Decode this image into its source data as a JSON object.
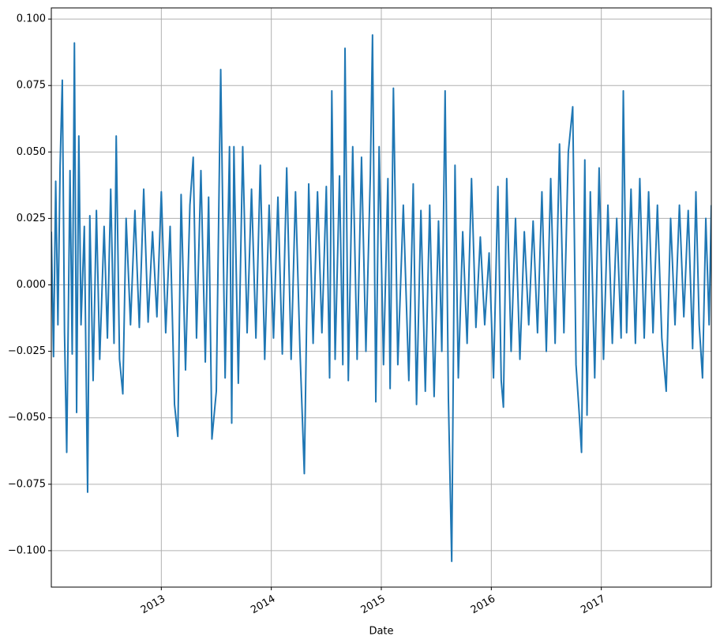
{
  "chart_data": {
    "type": "line",
    "x_label": "Date",
    "x": [
      2012.0,
      2012.02,
      2012.04,
      2012.06,
      2012.08,
      2012.1,
      2012.12,
      2012.14,
      2012.17,
      2012.19,
      2012.21,
      2012.23,
      2012.25,
      2012.27,
      2012.3,
      2012.33,
      2012.35,
      2012.38,
      2012.41,
      2012.44,
      2012.48,
      2012.51,
      2012.54,
      2012.57,
      2012.59,
      2012.62,
      2012.65,
      2012.68,
      2012.72,
      2012.76,
      2012.8,
      2012.84,
      2012.88,
      2012.92,
      2012.96,
      2013.0,
      2013.04,
      2013.08,
      2013.12,
      2013.15,
      2013.18,
      2013.22,
      2013.26,
      2013.29,
      2013.32,
      2013.36,
      2013.4,
      2013.43,
      2013.46,
      2013.5,
      2013.54,
      2013.58,
      2013.62,
      2013.64,
      2013.66,
      2013.7,
      2013.74,
      2013.78,
      2013.82,
      2013.86,
      2013.9,
      2013.94,
      2013.98,
      2014.02,
      2014.06,
      2014.1,
      2014.14,
      2014.18,
      2014.22,
      2014.26,
      2014.3,
      2014.34,
      2014.38,
      2014.42,
      2014.46,
      2014.5,
      2014.53,
      2014.55,
      2014.58,
      2014.62,
      2014.65,
      2014.67,
      2014.7,
      2014.74,
      2014.78,
      2014.82,
      2014.86,
      2014.9,
      2014.92,
      2014.95,
      2014.98,
      2015.02,
      2015.06,
      2015.08,
      2015.11,
      2015.15,
      2015.2,
      2015.25,
      2015.29,
      2015.32,
      2015.36,
      2015.4,
      2015.44,
      2015.48,
      2015.52,
      2015.55,
      2015.58,
      2015.61,
      2015.64,
      2015.67,
      2015.7,
      2015.74,
      2015.78,
      2015.82,
      2015.86,
      2015.9,
      2015.94,
      2015.98,
      2016.02,
      2016.06,
      2016.09,
      2016.11,
      2016.14,
      2016.18,
      2016.22,
      2016.26,
      2016.3,
      2016.34,
      2016.38,
      2016.42,
      2016.46,
      2016.5,
      2016.54,
      2016.58,
      2016.62,
      2016.66,
      2016.7,
      2016.74,
      2016.77,
      2016.8,
      2016.82,
      2016.85,
      2016.87,
      2016.9,
      2016.94,
      2016.98,
      2017.02,
      2017.06,
      2017.1,
      2017.14,
      2017.18,
      2017.2,
      2017.23,
      2017.27,
      2017.31,
      2017.35,
      2017.39,
      2017.43,
      2017.47,
      2017.51,
      2017.55,
      2017.59,
      2017.63,
      2017.67,
      2017.71,
      2017.75,
      2017.79,
      2017.83,
      2017.86,
      2017.89,
      2017.92,
      2017.95,
      2017.98,
      2018.0
    ],
    "series": [
      {
        "color": "#1f77b4",
        "values": [
          0.02,
          -0.027,
          0.039,
          -0.015,
          0.045,
          0.077,
          -0.018,
          -0.063,
          0.043,
          -0.026,
          0.091,
          -0.048,
          0.056,
          -0.015,
          0.022,
          -0.078,
          0.026,
          -0.036,
          0.028,
          -0.028,
          0.022,
          -0.02,
          0.036,
          -0.022,
          0.056,
          -0.028,
          -0.041,
          0.025,
          -0.015,
          0.028,
          -0.016,
          0.036,
          -0.014,
          0.02,
          -0.012,
          0.035,
          -0.018,
          0.022,
          -0.045,
          -0.057,
          0.034,
          -0.032,
          0.03,
          0.048,
          -0.02,
          0.043,
          -0.029,
          0.033,
          -0.058,
          -0.04,
          0.081,
          -0.035,
          0.052,
          -0.052,
          0.052,
          -0.037,
          0.052,
          -0.018,
          0.036,
          -0.02,
          0.045,
          -0.028,
          0.03,
          -0.02,
          0.033,
          -0.026,
          0.044,
          -0.028,
          0.035,
          -0.024,
          -0.071,
          0.038,
          -0.022,
          0.035,
          -0.018,
          0.037,
          -0.035,
          0.073,
          -0.028,
          0.041,
          -0.03,
          0.089,
          -0.036,
          0.052,
          -0.028,
          0.048,
          -0.025,
          0.041,
          0.094,
          -0.044,
          0.052,
          -0.03,
          0.04,
          -0.039,
          0.074,
          -0.03,
          0.03,
          -0.036,
          0.038,
          -0.045,
          0.028,
          -0.04,
          0.03,
          -0.042,
          0.024,
          -0.025,
          0.073,
          -0.043,
          -0.104,
          0.045,
          -0.035,
          0.02,
          -0.022,
          0.04,
          -0.016,
          0.018,
          -0.015,
          0.012,
          -0.035,
          0.037,
          -0.036,
          -0.046,
          0.04,
          -0.025,
          0.025,
          -0.028,
          0.02,
          -0.015,
          0.024,
          -0.018,
          0.035,
          -0.025,
          0.04,
          -0.022,
          0.053,
          -0.018,
          0.05,
          0.067,
          -0.03,
          -0.049,
          -0.063,
          0.047,
          -0.049,
          0.035,
          -0.035,
          0.044,
          -0.028,
          0.03,
          -0.022,
          0.025,
          -0.02,
          0.073,
          -0.018,
          0.036,
          -0.022,
          0.04,
          -0.02,
          0.035,
          -0.018,
          0.03,
          -0.02,
          -0.04,
          0.025,
          -0.015,
          0.03,
          -0.012,
          0.028,
          -0.024,
          0.035,
          -0.015,
          -0.035,
          0.025,
          -0.015,
          0.03
        ]
      }
    ],
    "xlim": [
      2012.0,
      2018.0
    ],
    "xticks": [
      2013,
      2014,
      2015,
      2016,
      2017
    ],
    "ylim": [
      -0.1137,
      0.1042
    ],
    "yticks": [
      {
        "value": 0.1,
        "label": "0.100"
      },
      {
        "value": 0.075,
        "label": "0.075"
      },
      {
        "value": 0.05,
        "label": "0.050"
      },
      {
        "value": 0.025,
        "label": "0.025"
      },
      {
        "value": 0,
        "label": "0.000"
      },
      {
        "value": -0.025,
        "label": "−0.025"
      },
      {
        "value": -0.05,
        "label": "−0.050"
      },
      {
        "value": -0.075,
        "label": "−0.075"
      },
      {
        "value": -0.1,
        "label": "−0.100"
      }
    ],
    "grid": true
  }
}
